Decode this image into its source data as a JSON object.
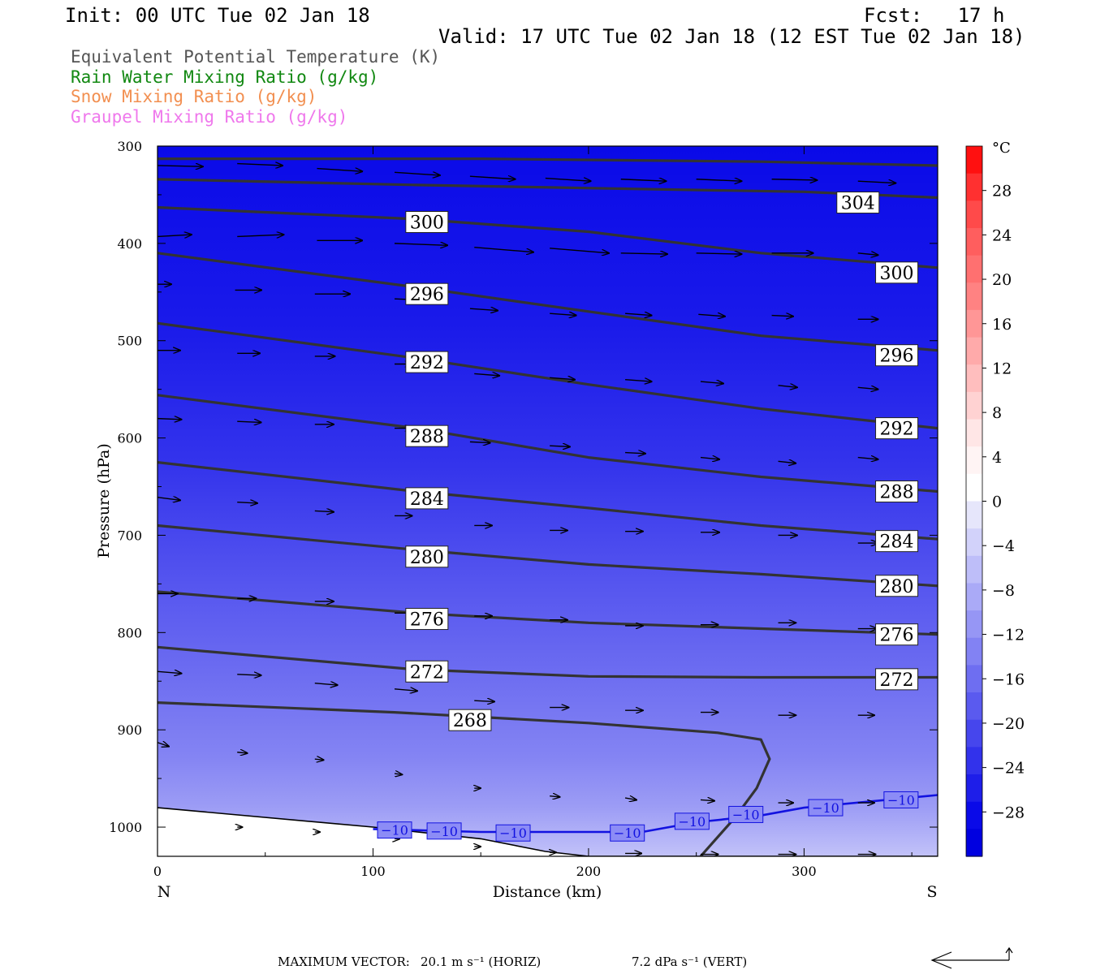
{
  "header": {
    "init": "Init: 00 UTC Tue 02 Jan 18",
    "fcst": "Fcst:   17 h",
    "valid": "Valid: 17 UTC Tue 02 Jan 18 (12 EST Tue 02 Jan 18)"
  },
  "legend": [
    {
      "text": "Equivalent Potential Temperature (K)",
      "color": "#555555"
    },
    {
      "text": "Rain Water Mixing Ratio (g/kg)",
      "color": "#118811"
    },
    {
      "text": "Snow Mixing Ratio (g/kg)",
      "color": "#f28f50"
    },
    {
      "text": "Graupel Mixing Ratio (g/kg)",
      "color": "#ef78ec"
    }
  ],
  "footer": {
    "max_vector_label": "MAXIMUM VECTOR:",
    "horiz": "20.1 m s⁻¹ (HORIZ)",
    "vert": "7.2 dPa s⁻¹ (VERT)"
  },
  "chart_data": {
    "type": "cross-section",
    "xlabel": "Distance (km)",
    "ylabel": "Pressure (hPa)",
    "xlim": [
      0,
      362
    ],
    "ylim": [
      1030,
      300
    ],
    "x_ticks": [
      0,
      100,
      200,
      300
    ],
    "y_ticks": [
      300,
      400,
      500,
      600,
      700,
      800,
      900,
      1000
    ],
    "x_end_labels": {
      "left": "N",
      "right": "S"
    },
    "colorbar": {
      "unit": "°C",
      "tick_labels": [
        "28",
        "24",
        "20",
        "16",
        "12",
        "8",
        "4",
        "0",
        "−4",
        "−8",
        "−12",
        "−16",
        "−20",
        "−24",
        "−28"
      ],
      "tick_values": [
        28,
        24,
        20,
        16,
        12,
        8,
        4,
        0,
        -4,
        -8,
        -12,
        -16,
        -20,
        -24,
        -28
      ],
      "bins": [
        32,
        30,
        28,
        26,
        24,
        22,
        20,
        18,
        16,
        14,
        12,
        10,
        8,
        6,
        4,
        2,
        0,
        -2,
        -4,
        -6,
        -8,
        -10,
        -12,
        -14,
        -16,
        -18,
        -20,
        -22,
        -24,
        -26,
        -28,
        -30,
        -32
      ],
      "colors": [
        "#ff1010",
        "#ff3030",
        "#ff4a4a",
        "#ff5e5e",
        "#ff7070",
        "#ff8282",
        "#ff9696",
        "#ffaaaa",
        "#ffbebe",
        "#ffd2d2",
        "#ffe6e6",
        "#fff4f4",
        "#ffffff",
        "#e6e6fb",
        "#d2d2fa",
        "#bebef9",
        "#aaaaf7",
        "#9696f5",
        "#8282f3",
        "#6e6ef1",
        "#5a5aef",
        "#4646ed",
        "#3232eb",
        "#1e1ee9",
        "#0a0ae8",
        "#0000e0"
      ]
    },
    "theta_e_contours": [
      {
        "level": 304,
        "points": [
          [
            0,
            313
          ],
          [
            150,
            313
          ],
          [
            280,
            316
          ],
          [
            362,
            320
          ]
        ]
      },
      {
        "level": 304,
        "points": [
          [
            0,
            334
          ],
          [
            120,
            340
          ],
          [
            220,
            344
          ],
          [
            300,
            347
          ],
          [
            362,
            353
          ]
        ],
        "labels": [
          [
            325,
            358
          ]
        ]
      },
      {
        "level": 300,
        "points": [
          [
            0,
            363
          ],
          [
            120,
            375
          ],
          [
            200,
            388
          ],
          [
            280,
            410
          ],
          [
            362,
            425
          ]
        ],
        "labels": [
          [
            125,
            378
          ],
          [
            343,
            430
          ]
        ]
      },
      {
        "level": 296,
        "points": [
          [
            0,
            410
          ],
          [
            120,
            445
          ],
          [
            200,
            470
          ],
          [
            280,
            495
          ],
          [
            362,
            510
          ]
        ],
        "labels": [
          [
            125,
            452
          ],
          [
            343,
            515
          ]
        ]
      },
      {
        "level": 292,
        "points": [
          [
            0,
            482
          ],
          [
            120,
            518
          ],
          [
            200,
            545
          ],
          [
            280,
            570
          ],
          [
            362,
            590
          ]
        ],
        "labels": [
          [
            125,
            522
          ],
          [
            343,
            590
          ]
        ]
      },
      {
        "level": 288,
        "points": [
          [
            0,
            556
          ],
          [
            120,
            590
          ],
          [
            200,
            620
          ],
          [
            280,
            640
          ],
          [
            362,
            655
          ]
        ],
        "labels": [
          [
            125,
            598
          ],
          [
            343,
            655
          ]
        ]
      },
      {
        "level": 284,
        "points": [
          [
            0,
            625
          ],
          [
            120,
            655
          ],
          [
            200,
            672
          ],
          [
            280,
            690
          ],
          [
            362,
            704
          ]
        ],
        "labels": [
          [
            125,
            662
          ],
          [
            343,
            706
          ]
        ]
      },
      {
        "level": 280,
        "points": [
          [
            0,
            690
          ],
          [
            120,
            715
          ],
          [
            200,
            730
          ],
          [
            280,
            740
          ],
          [
            362,
            752
          ]
        ],
        "labels": [
          [
            125,
            722
          ],
          [
            343,
            752
          ]
        ]
      },
      {
        "level": 276,
        "points": [
          [
            0,
            758
          ],
          [
            120,
            780
          ],
          [
            200,
            790
          ],
          [
            280,
            796
          ],
          [
            362,
            802
          ]
        ],
        "labels": [
          [
            125,
            786
          ],
          [
            343,
            802
          ]
        ]
      },
      {
        "level": 272,
        "points": [
          [
            0,
            815
          ],
          [
            120,
            838
          ],
          [
            200,
            845
          ],
          [
            280,
            846
          ],
          [
            362,
            846
          ]
        ],
        "labels": [
          [
            125,
            840
          ],
          [
            343,
            848
          ]
        ]
      },
      {
        "level": 268,
        "points": [
          [
            0,
            872
          ],
          [
            110,
            882
          ],
          [
            200,
            893
          ],
          [
            260,
            903
          ],
          [
            280,
            910
          ],
          [
            284,
            930
          ],
          [
            278,
            960
          ],
          [
            268,
            990
          ],
          [
            252,
            1030
          ]
        ],
        "labels": [
          [
            145,
            890
          ]
        ]
      }
    ],
    "temp_contours": [
      {
        "level": -10,
        "points": [
          [
            100,
            1002
          ],
          [
            150,
            1005
          ],
          [
            225,
            1005
          ],
          [
            250,
            995
          ],
          [
            280,
            988
          ],
          [
            300,
            980
          ],
          [
            362,
            967
          ]
        ],
        "labels": [
          [
            110,
            1003
          ],
          [
            133,
            1004
          ],
          [
            165,
            1006
          ],
          [
            218,
            1006
          ],
          [
            248,
            994
          ],
          [
            273,
            987
          ],
          [
            310,
            980
          ],
          [
            345,
            972
          ]
        ]
      }
    ],
    "terrain": [
      [
        0,
        980
      ],
      [
        100,
        1000
      ],
      [
        150,
        1012
      ],
      [
        180,
        1025
      ],
      [
        200,
        1030
      ],
      [
        362,
        1030
      ]
    ],
    "vectors": [
      [
        0,
        320,
        36,
        1
      ],
      [
        37,
        318,
        36,
        2
      ],
      [
        74,
        323,
        36,
        3
      ],
      [
        110,
        327,
        36,
        3
      ],
      [
        145,
        331,
        36,
        3
      ],
      [
        180,
        333,
        36,
        3
      ],
      [
        215,
        334,
        36,
        2
      ],
      [
        250,
        334,
        36,
        2
      ],
      [
        285,
        334,
        36,
        1
      ],
      [
        325,
        336,
        30,
        2
      ],
      [
        0,
        393,
        27,
        -2
      ],
      [
        37,
        393,
        37,
        -2
      ],
      [
        74,
        397,
        36,
        0
      ],
      [
        110,
        400,
        42,
        2
      ],
      [
        147,
        404,
        47,
        5
      ],
      [
        182,
        405,
        47,
        5
      ],
      [
        215,
        410,
        37,
        1
      ],
      [
        250,
        410,
        36,
        1
      ],
      [
        285,
        410,
        33,
        0
      ],
      [
        325,
        410,
        16,
        2
      ],
      [
        0,
        442,
        11,
        0
      ],
      [
        36,
        448,
        21,
        0
      ],
      [
        73,
        452,
        28,
        0
      ],
      [
        110,
        457,
        17,
        1
      ],
      [
        145,
        467,
        22,
        2
      ],
      [
        182,
        472,
        21,
        2
      ],
      [
        217,
        472,
        21,
        2
      ],
      [
        251,
        473,
        21,
        2
      ],
      [
        285,
        474,
        17,
        1
      ],
      [
        325,
        478,
        16,
        0
      ],
      [
        0,
        510,
        18,
        0
      ],
      [
        37,
        513,
        18,
        0
      ],
      [
        73,
        516,
        16,
        0
      ],
      [
        110,
        524,
        14,
        0
      ],
      [
        147,
        534,
        20,
        2
      ],
      [
        182,
        538,
        20,
        2
      ],
      [
        217,
        540,
        21,
        2
      ],
      [
        252,
        542,
        18,
        2
      ],
      [
        288,
        546,
        15,
        2
      ],
      [
        325,
        548,
        16,
        2
      ],
      [
        0,
        580,
        19,
        1
      ],
      [
        37,
        583,
        19,
        1
      ],
      [
        73,
        586,
        15,
        0
      ],
      [
        110,
        590,
        14,
        0
      ],
      [
        145,
        604,
        16,
        1
      ],
      [
        182,
        608,
        16,
        1
      ],
      [
        217,
        615,
        16,
        1
      ],
      [
        252,
        620,
        15,
        2
      ],
      [
        288,
        624,
        14,
        2
      ],
      [
        325,
        620,
        16,
        2
      ],
      [
        0,
        661,
        18,
        3
      ],
      [
        37,
        666,
        16,
        1
      ],
      [
        73,
        675,
        15,
        1
      ],
      [
        110,
        680,
        14,
        0
      ],
      [
        147,
        690,
        14,
        0
      ],
      [
        182,
        695,
        14,
        0
      ],
      [
        217,
        696,
        14,
        0
      ],
      [
        252,
        697,
        15,
        0
      ],
      [
        288,
        700,
        15,
        0
      ],
      [
        325,
        708,
        16,
        0
      ],
      [
        0,
        760,
        16,
        0
      ],
      [
        37,
        765,
        15,
        0
      ],
      [
        73,
        768,
        15,
        0
      ],
      [
        110,
        780,
        15,
        0
      ],
      [
        147,
        783,
        14,
        0
      ],
      [
        182,
        787,
        14,
        0
      ],
      [
        217,
        793,
        14,
        0
      ],
      [
        252,
        792,
        14,
        0
      ],
      [
        288,
        790,
        14,
        0
      ],
      [
        325,
        796,
        15,
        0
      ],
      [
        0,
        840,
        19,
        2
      ],
      [
        37,
        843,
        19,
        1
      ],
      [
        73,
        852,
        18,
        2
      ],
      [
        110,
        858,
        18,
        2
      ],
      [
        147,
        870,
        16,
        1
      ],
      [
        182,
        877,
        15,
        0
      ],
      [
        217,
        880,
        14,
        0
      ],
      [
        252,
        882,
        14,
        0
      ],
      [
        288,
        885,
        14,
        0
      ],
      [
        325,
        885,
        13,
        0
      ],
      [
        0,
        913,
        9,
        4
      ],
      [
        37,
        923,
        8,
        1
      ],
      [
        73,
        930,
        7,
        1
      ],
      [
        110,
        945,
        6,
        1
      ],
      [
        147,
        960,
        5,
        0
      ],
      [
        182,
        968,
        8,
        1
      ],
      [
        217,
        970,
        9,
        2
      ],
      [
        252,
        972,
        11,
        1
      ],
      [
        288,
        975,
        12,
        0
      ],
      [
        325,
        975,
        13,
        0
      ],
      [
        37,
        1000,
        4,
        0
      ],
      [
        73,
        1005,
        4,
        0
      ],
      [
        110,
        1012,
        4,
        0
      ],
      [
        147,
        1020,
        5,
        0
      ],
      [
        182,
        1026,
        5,
        0
      ],
      [
        217,
        1027,
        13,
        0
      ],
      [
        252,
        1028,
        14,
        0
      ],
      [
        288,
        1028,
        14,
        0
      ],
      [
        325,
        1028,
        14,
        0
      ]
    ]
  }
}
